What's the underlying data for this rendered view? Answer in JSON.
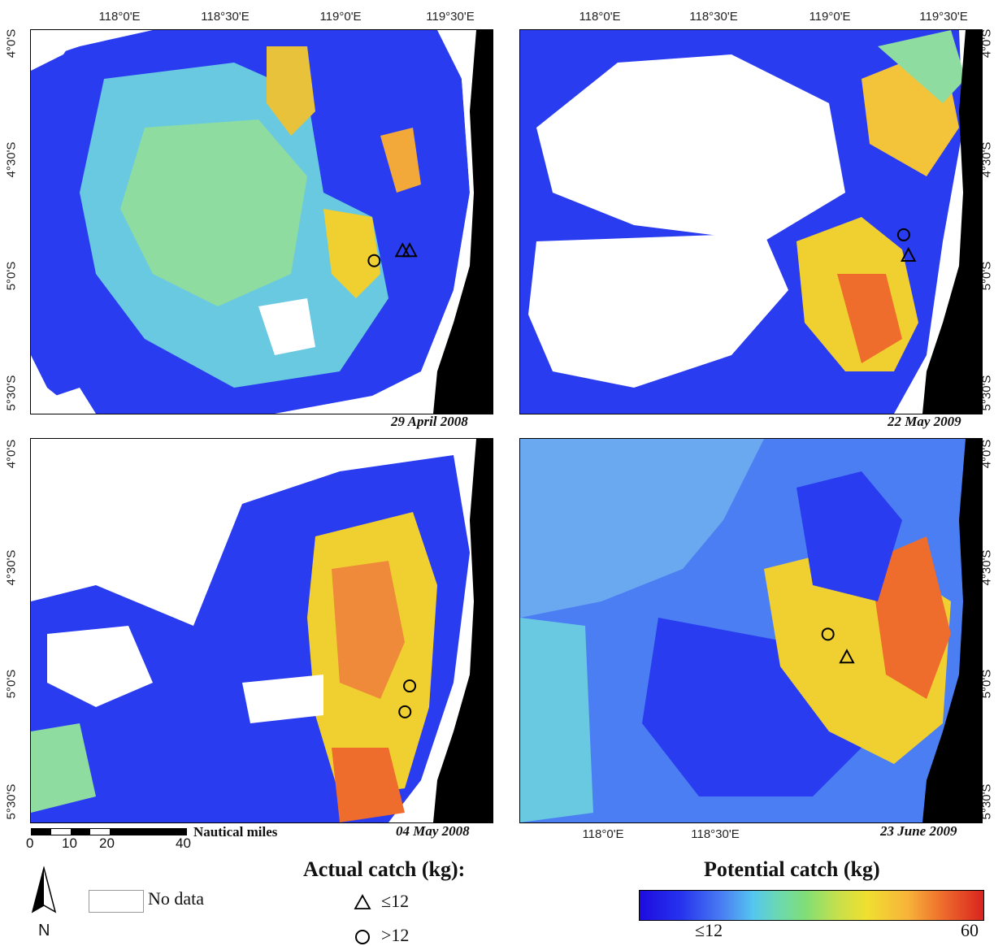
{
  "map": {
    "lon_ticks_top": [
      "118°0'E",
      "118°30'E",
      "119°0'E",
      "119°30'E"
    ],
    "lon_ticks_bottom": [
      "118°0'E",
      "118°30'E"
    ],
    "lat_ticks": [
      "4°0'S",
      "4°30'S",
      "5°0'S",
      "5°30'S"
    ],
    "panels": [
      {
        "id": "p1",
        "date": "29 April 2008",
        "markers": [
          {
            "type": "circle",
            "lon": 119.05,
            "lat": -4.93
          },
          {
            "type": "triangle",
            "lon": 119.2,
            "lat": -4.89
          },
          {
            "type": "triangle",
            "lon": 119.17,
            "lat": -4.89
          }
        ]
      },
      {
        "id": "p2",
        "date": "22 May 2009",
        "markers": [
          {
            "type": "circle",
            "lon": 119.22,
            "lat": -4.82
          },
          {
            "type": "triangle",
            "lon": 119.24,
            "lat": -4.91
          }
        ]
      },
      {
        "id": "p3",
        "date": "04 May 2008",
        "markers": [
          {
            "type": "circle",
            "lon": 119.2,
            "lat": -5.0
          },
          {
            "type": "circle",
            "lon": 119.18,
            "lat": -5.11
          }
        ]
      },
      {
        "id": "p4",
        "date": "23 June 2009",
        "markers": [
          {
            "type": "circle",
            "lon": 118.9,
            "lat": -4.78
          },
          {
            "type": "triangle",
            "lon": 118.98,
            "lat": -4.88
          }
        ]
      }
    ],
    "scale": {
      "labels": [
        "0",
        "10",
        "20",
        "40"
      ],
      "unit": "Nautical miles"
    },
    "north_label": "N",
    "no_data_label": "No data"
  },
  "legend": {
    "actual_title": "Actual catch (kg):",
    "triangle_label": "≤12",
    "circle_label": ">12",
    "potential_title": "Potential catch (kg)",
    "colorbar_min": "≤12",
    "colorbar_max": "60",
    "colors": [
      "#1e0be0",
      "#4a7ef2",
      "#55c6ef",
      "#7fde78",
      "#f0e030",
      "#ee6d2c",
      "#d9241f"
    ]
  }
}
